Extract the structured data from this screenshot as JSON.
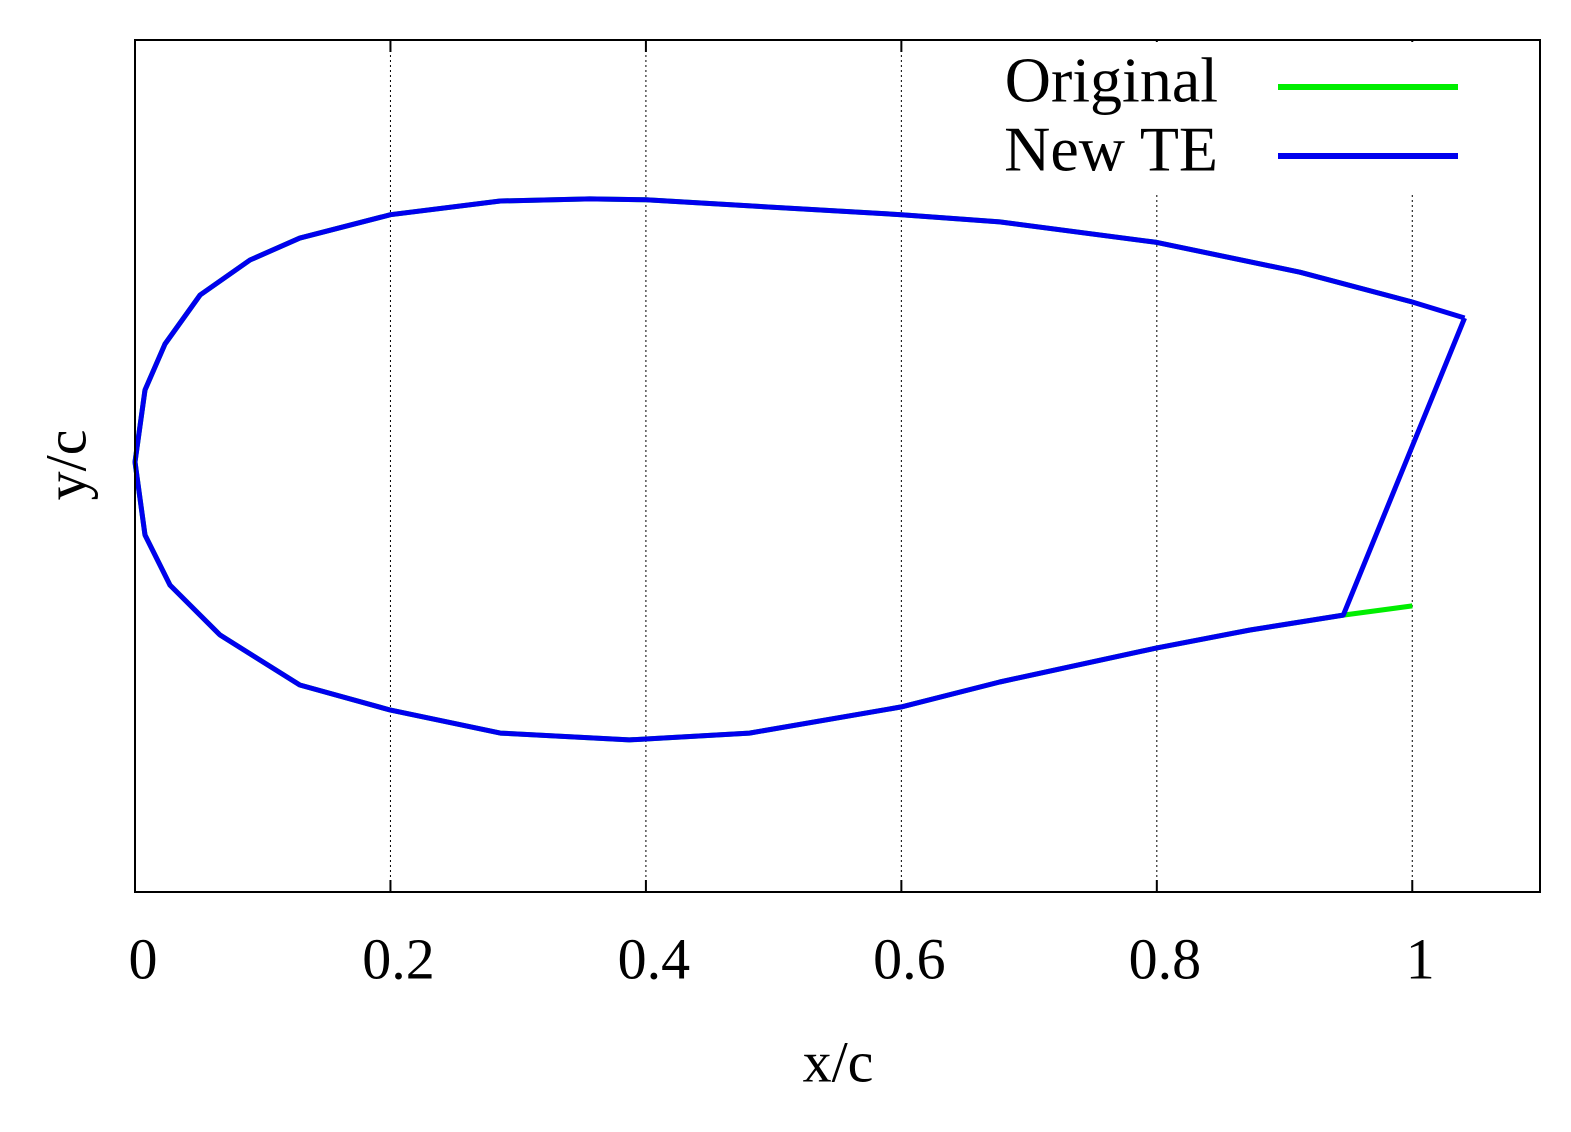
{
  "chart_data": {
    "type": "line",
    "x_label": "x/c",
    "y_label": "y/c",
    "xlim": [
      0,
      1.1
    ],
    "xticks": [
      0,
      0.2,
      0.4,
      0.6,
      0.8,
      1
    ],
    "ylim": [
      -0.2,
      0.2
    ],
    "grid": true,
    "legend": "top-right",
    "series": [
      {
        "name": "Original",
        "color": "#00ee00",
        "x": [
          1.0,
          0.912,
          0.8,
          0.677,
          0.6,
          0.4,
          0.356,
          0.286,
          0.2,
          0.129,
          0.09,
          0.051,
          0.0235,
          0.0078,
          0,
          0.0078,
          0.0274,
          0.0665,
          0.129,
          0.2,
          0.286,
          0.387,
          0.481,
          0.6,
          0.677,
          0.8,
          0.873,
          0.946,
          1.0
        ],
        "values": [
          0.077,
          0.091,
          0.105,
          0.1146,
          0.118,
          0.125,
          0.1254,
          0.1244,
          0.118,
          0.107,
          0.0967,
          0.0803,
          0.0573,
          0.0357,
          0.0019,
          -0.0324,
          -0.0559,
          -0.0793,
          -0.1028,
          -0.1146,
          -0.1254,
          -0.1286,
          -0.1254,
          -0.1131,
          -0.1014,
          -0.0854,
          -0.077,
          -0.07,
          -0.0657
        ]
      },
      {
        "name": "New TE",
        "color": "#0000ee",
        "x": [
          1.041,
          1.0,
          0.912,
          0.8,
          0.677,
          0.6,
          0.4,
          0.356,
          0.286,
          0.2,
          0.129,
          0.09,
          0.051,
          0.0235,
          0.0078,
          0,
          0.0078,
          0.0274,
          0.0665,
          0.129,
          0.2,
          0.286,
          0.387,
          0.481,
          0.6,
          0.677,
          0.8,
          0.873,
          0.946,
          1.041
        ],
        "values": [
          0.0695,
          0.077,
          0.091,
          0.105,
          0.1146,
          0.118,
          0.125,
          0.1254,
          0.1244,
          0.118,
          0.107,
          0.0967,
          0.0803,
          0.0573,
          0.0357,
          0.0019,
          -0.0324,
          -0.0559,
          -0.0793,
          -0.1028,
          -0.1146,
          -0.1254,
          -0.1286,
          -0.1254,
          -0.1131,
          -0.1014,
          -0.0854,
          -0.077,
          -0.07,
          0.0695
        ]
      }
    ]
  }
}
